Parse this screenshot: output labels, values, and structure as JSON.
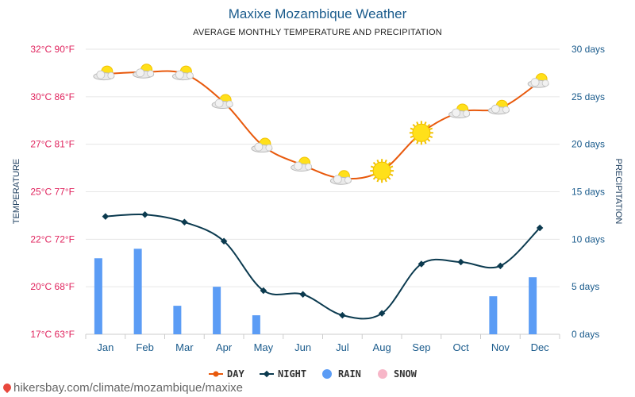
{
  "title": "Maxixe Mozambique Weather",
  "subtitle": "AVERAGE MONTHLY TEMPERATURE AND PRECIPITATION",
  "credit": "hikersbay.com/climate/mozambique/maxixe",
  "chart_data": {
    "type": "line",
    "categories": [
      "Jan",
      "Feb",
      "Mar",
      "Apr",
      "May",
      "Jun",
      "Jul",
      "Aug",
      "Sep",
      "Oct",
      "Nov",
      "Dec"
    ],
    "ylabel": "TEMPERATURE",
    "y2label": "PRECIPITATION",
    "ylim": [
      17,
      32
    ],
    "y2lim": [
      0,
      30
    ],
    "y_ticks": [
      "17°C 63°F",
      "20°C 68°F",
      "22°C 72°F",
      "25°C 77°F",
      "27°C 81°F",
      "30°C 86°F",
      "32°C 90°F"
    ],
    "y2_ticks": [
      "0 days",
      "5 days",
      "10 days",
      "15 days",
      "20 days",
      "25 days",
      "30 days"
    ],
    "grid": true,
    "legend_position": "bottom",
    "series": [
      {
        "name": "DAY",
        "kind": "line",
        "axis": "left",
        "color": "#e8590c",
        "values": [
          30.7,
          30.8,
          30.7,
          29.2,
          26.9,
          25.9,
          25.2,
          25.6,
          27.6,
          28.7,
          28.9,
          30.3
        ]
      },
      {
        "name": "NIGHT",
        "kind": "line",
        "axis": "left",
        "color": "#0b3a4f",
        "values": [
          23.2,
          23.3,
          22.9,
          21.9,
          19.3,
          19.1,
          18.0,
          18.1,
          20.7,
          20.8,
          20.6,
          22.6
        ]
      },
      {
        "name": "RAIN",
        "kind": "bar",
        "axis": "right",
        "color": "#5b9cf5",
        "values": [
          8,
          9,
          3,
          5,
          2,
          0,
          0,
          0,
          0,
          0,
          4,
          6
        ]
      },
      {
        "name": "SNOW",
        "kind": "bar",
        "axis": "right",
        "color": "#f7b6c8",
        "values": [
          0,
          0,
          0,
          0,
          0,
          0,
          0,
          0,
          0,
          0,
          0,
          0
        ]
      }
    ],
    "weather_icons": [
      "partly-cloudy-icon",
      "partly-cloudy-icon",
      "partly-cloudy-icon",
      "partly-cloudy-icon",
      "partly-cloudy-icon",
      "partly-cloudy-icon",
      "partly-cloudy-icon",
      "sun-icon",
      "sun-icon",
      "partly-cloudy-icon",
      "partly-cloudy-icon",
      "partly-cloudy-icon"
    ]
  }
}
